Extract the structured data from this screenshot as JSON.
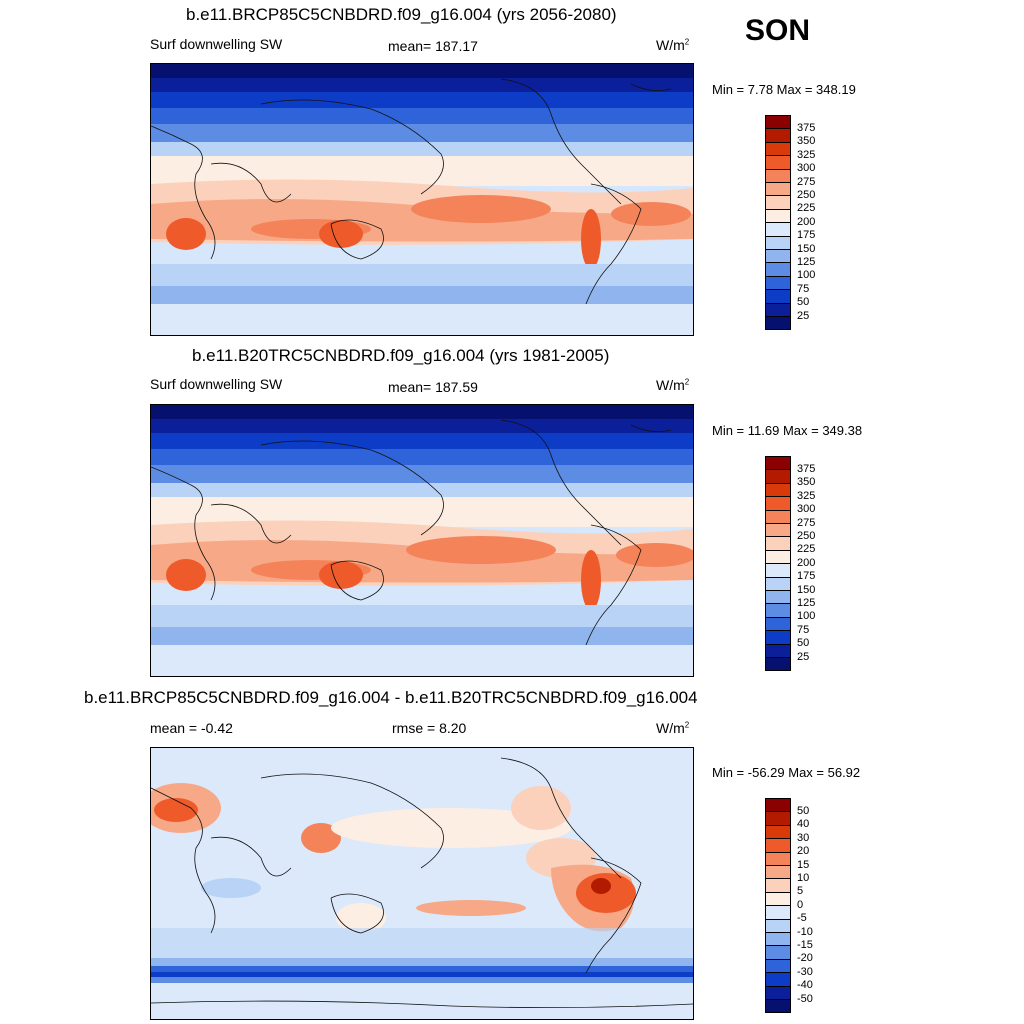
{
  "season": "SON",
  "panels": [
    {
      "title": "b.e11.BRCP85C5CNBDRD.f09_g16.004 (yrs 2056-2080)",
      "left_label": "Surf downwelling SW",
      "stat_label": "mean= 187.17",
      "stat2_label": "",
      "units": "W/m",
      "units_sup": "2",
      "minmax": "Min =   7.78 Max = 348.19",
      "colorbar_ticks": [
        "375",
        "350",
        "325",
        "300",
        "275",
        "250",
        "225",
        "200",
        "175",
        "150",
        "125",
        "100",
        "75",
        "50",
        "25"
      ]
    },
    {
      "title": "b.e11.B20TRC5CNBDRD.f09_g16.004 (yrs 1981-2005)",
      "left_label": "Surf downwelling SW",
      "stat_label": "mean= 187.59",
      "stat2_label": "",
      "units": "W/m",
      "units_sup": "2",
      "minmax": "Min =  11.69 Max = 349.38",
      "colorbar_ticks": [
        "375",
        "350",
        "325",
        "300",
        "275",
        "250",
        "225",
        "200",
        "175",
        "150",
        "125",
        "100",
        "75",
        "50",
        "25"
      ]
    },
    {
      "title": "b.e11.BRCP85C5CNBDRD.f09_g16.004 - b.e11.B20TRC5CNBDRD.f09_g16.004",
      "left_label": "mean =  -0.42",
      "stat_label": "rmse =   8.20",
      "stat2_label": "",
      "units": "W/m",
      "units_sup": "2",
      "minmax": "Min = -56.29 Max =  56.92",
      "colorbar_ticks": [
        "50",
        "40",
        "30",
        "20",
        "15",
        "10",
        "5",
        "0",
        "-5",
        "-10",
        "-15",
        "-20",
        "-30",
        "-40",
        "-50"
      ]
    }
  ],
  "colors": {
    "abs_scale": [
      "#8b0000",
      "#b31b00",
      "#d93a0a",
      "#ee5a2a",
      "#f4835a",
      "#f7a987",
      "#fbd1bb",
      "#fdeee3",
      "#dbe9fb",
      "#b8d3f5",
      "#8fb4ee",
      "#5d8ce4",
      "#2f63da",
      "#0d3cc6",
      "#0a1f99",
      "#06106e"
    ],
    "diff_scale": [
      "#8b0000",
      "#b31b00",
      "#d93a0a",
      "#ee5a2a",
      "#f4835a",
      "#f7a987",
      "#fbd1bb",
      "#fdeee3",
      "#dbe9fb",
      "#b8d3f5",
      "#8fb4ee",
      "#5d8ce4",
      "#2f63da",
      "#0d3cc6",
      "#0a1f99",
      "#06106e"
    ]
  }
}
